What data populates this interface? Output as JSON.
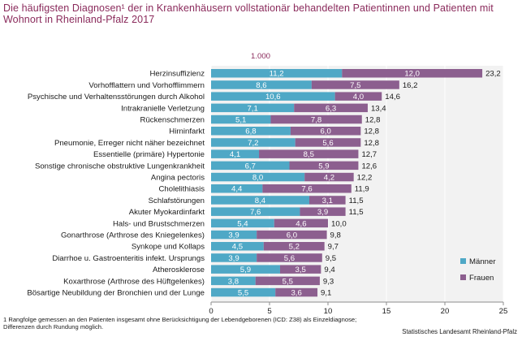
{
  "title": "Die häufigsten Diagnosen¹ der in Krankenhäusern vollstationär behandelten Patientinnen und Patienten mit Wohnort in Rheinland-Pfalz 2017",
  "footnote": "1 Rangfolge gemessen an den Patienten insgesamt ohne Berücksichtigung der Lebendgeborenen (ICD: Z38) als Einzeldiagnose; Differenzen durch Rundung möglich.",
  "source": "Statistisches Landesamt Rheinland-Pfalz",
  "colors": {
    "maenner": "#4fa8c6",
    "frauen": "#8c5f8f",
    "title": "#8a2a5b"
  },
  "chart_data": {
    "type": "bar",
    "orientation": "horizontal",
    "stacked": true,
    "unit": "1.000",
    "categories": [
      "Herzinsuffizienz",
      "Vorhofflattern und Vorhofflimmern",
      "Psychische und Verhaltensstörungen durch Alkohol",
      "Intrakranielle Verletzung",
      "Rückenschmerzen",
      "Hirninfarkt",
      "Pneumonie, Erreger nicht näher bezeichnet",
      "Essentielle (primäre) Hypertonie",
      "Sonstige chronische obstruktive Lungenkrankheit",
      "Angina pectoris",
      "Cholelithiasis",
      "Schlafstörungen",
      "Akuter Myokardinfarkt",
      "Hals- und Brustschmerzen",
      "Gonarthrose (Arthrose des Kniegelenkes)",
      "Synkope und Kollaps",
      "Diarrhoe u. Gastroenteritis infekt. Ursprungs",
      "Atherosklerose",
      "Koxarthrose (Arthrose des Hüftgelenkes)",
      "Bösartige Neubildung der Bronchien und der Lunge"
    ],
    "series": [
      {
        "name": "Männer",
        "values": [
          11.2,
          8.6,
          10.6,
          7.1,
          5.1,
          6.8,
          7.2,
          4.1,
          6.7,
          8.0,
          4.4,
          8.4,
          7.6,
          5.4,
          3.9,
          4.5,
          3.9,
          5.9,
          3.8,
          5.5
        ],
        "labels": [
          "11,2",
          "8,6",
          "10,6",
          "7,1",
          "5,1",
          "6,8",
          "7,2",
          "4,1",
          "6,7",
          "8,0",
          "4,4",
          "8,4",
          "7,6",
          "5,4",
          "3,9",
          "4,5",
          "3,9",
          "5,9",
          "3,8",
          "5,5"
        ]
      },
      {
        "name": "Frauen",
        "values": [
          12.0,
          7.5,
          4.0,
          6.3,
          7.8,
          6.0,
          5.6,
          8.5,
          5.9,
          4.2,
          7.6,
          3.1,
          3.9,
          4.6,
          6.0,
          5.2,
          5.6,
          3.5,
          5.5,
          3.6
        ],
        "labels": [
          "12,0",
          "7,5",
          "4,0",
          "6,3",
          "7,8",
          "6,0",
          "5,6",
          "8,5",
          "5,9",
          "4,2",
          "7,6",
          "3,1",
          "3,9",
          "4,6",
          "6,0",
          "5,2",
          "5,6",
          "3,5",
          "5,5",
          "3,6"
        ]
      }
    ],
    "totals": [
      "23,2",
      "16,2",
      "14,6",
      "13,4",
      "12,8",
      "12,8",
      "12,8",
      "12,7",
      "12,6",
      "12,2",
      "11,9",
      "11,5",
      "11,5",
      "10,0",
      "9,8",
      "9,7",
      "9,5",
      "9,4",
      "9,3",
      "9,1"
    ],
    "xlim": [
      0,
      25
    ],
    "xticks": [
      "0",
      "5",
      "10",
      "15",
      "20",
      "25"
    ],
    "legend": "right"
  }
}
